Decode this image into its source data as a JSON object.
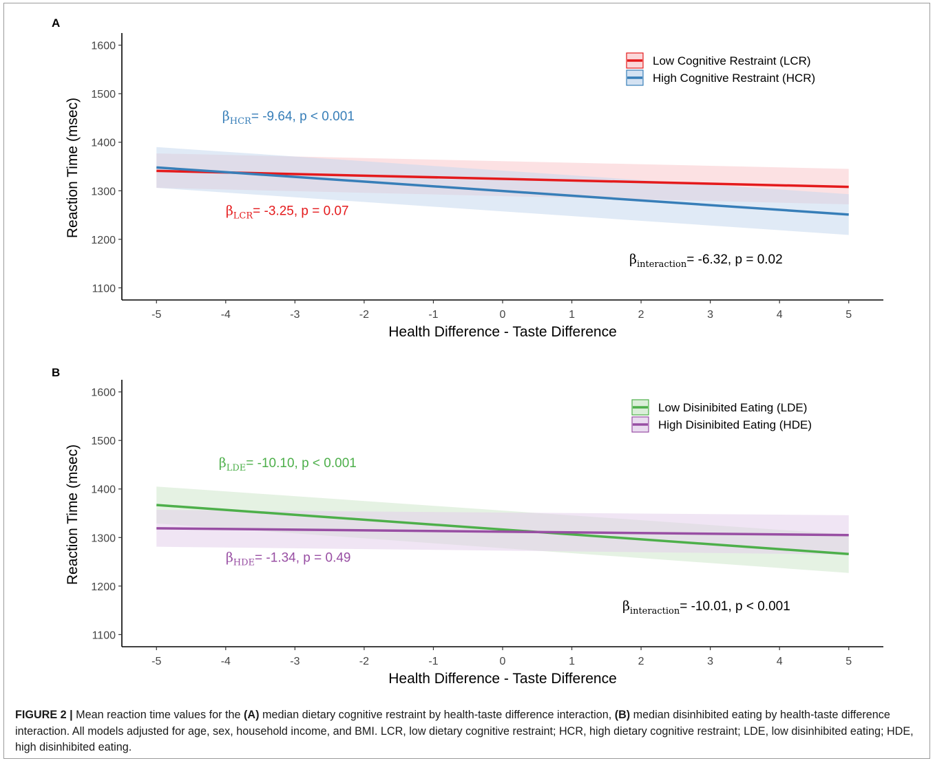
{
  "chart_data": [
    {
      "type": "line",
      "panel": "A",
      "xlabel": "Health Difference - Taste Difference",
      "ylabel": "Reaction Time (msec)",
      "xlim": [
        -5.5,
        5.5
      ],
      "ylim": [
        1075,
        1625
      ],
      "xticks": [
        -5,
        -4,
        -3,
        -2,
        -1,
        0,
        1,
        2,
        3,
        4,
        5
      ],
      "yticks": [
        1100,
        1200,
        1300,
        1400,
        1500,
        1600
      ],
      "legend": "top-right",
      "series": [
        {
          "name": "Low Cognitive Restraint (LCR)",
          "color": "#e41a1c",
          "band": "#f9c9cc",
          "x": [
            -5,
            5
          ],
          "y": [
            1341,
            1308
          ],
          "lower": [
            1306,
            1272
          ],
          "upper": [
            1377,
            1345
          ]
        },
        {
          "name": "High Cognitive Restraint (HCR)",
          "color": "#377eb8",
          "band": "#c6d8ee",
          "x": [
            -5,
            5
          ],
          "y": [
            1348,
            1251
          ],
          "lower": [
            1306,
            1209
          ],
          "upper": [
            1390,
            1293
          ]
        }
      ],
      "annotations": [
        {
          "key": "ann0",
          "sub": "HCR",
          "text": "= -9.64, p < 0.001",
          "color": "#377eb8",
          "x": -4.05,
          "y": 1445
        },
        {
          "key": "ann1",
          "sub": "LCR",
          "text": "= -3.25, p = 0.07",
          "color": "#e41a1c",
          "x": -4.0,
          "y": 1250
        },
        {
          "key": "ann2",
          "sub": "interaction",
          "text": "= -6.32, p = 0.02",
          "color": "#000000",
          "x": 1.83,
          "y": 1150
        }
      ]
    },
    {
      "type": "line",
      "panel": "B",
      "xlabel": "Health Difference - Taste Difference",
      "ylabel": "Reaction Time (msec)",
      "xlim": [
        -5.5,
        5.5
      ],
      "ylim": [
        1075,
        1625
      ],
      "xticks": [
        -5,
        -4,
        -3,
        -2,
        -1,
        0,
        1,
        2,
        3,
        4,
        5
      ],
      "yticks": [
        1100,
        1200,
        1300,
        1400,
        1500,
        1600
      ],
      "legend": "top-right",
      "series": [
        {
          "name": "Low Disinibited Eating (LDE)",
          "color": "#4daf4a",
          "band": "#cfe8cc",
          "x": [
            -5,
            5
          ],
          "y": [
            1367,
            1266
          ],
          "lower": [
            1329,
            1227
          ],
          "upper": [
            1405,
            1306
          ]
        },
        {
          "name": "High Disinibited Eating (HDE)",
          "color": "#984ea3",
          "band": "#e3d0eb",
          "x": [
            -5,
            5
          ],
          "y": [
            1319,
            1305
          ],
          "lower": [
            1281,
            1265
          ],
          "upper": [
            1357,
            1346
          ]
        }
      ],
      "annotations": [
        {
          "key": "ann0",
          "sub": "LDE",
          "text": "= -10.10, p < 0.001",
          "color": "#4daf4a",
          "x": -4.1,
          "y": 1445
        },
        {
          "key": "ann1",
          "sub": "HDE",
          "text": "= -1.34, p = 0.49",
          "color": "#984ea3",
          "x": -4.0,
          "y": 1250
        },
        {
          "key": "ann2",
          "sub": "interaction",
          "text": "= -10.01, p < 0.001",
          "color": "#000000",
          "x": 1.73,
          "y": 1150
        }
      ]
    }
  ],
  "caption": {
    "figure_label": "FIGURE 2 |",
    "part1": " Mean reaction time values for the ",
    "a_label": "(A)",
    "part2": " median dietary cognitive restraint by health-taste difference interaction, ",
    "b_label": "(B)",
    "part3": " median disinhibited eating by health-taste difference interaction. All models adjusted for age, sex, household income, and BMI. LCR, low dietary cognitive restraint; HCR, high dietary cognitive restraint; LDE, low disinhibited eating; HDE, high disinhibited eating."
  },
  "beta_symbol": "β"
}
